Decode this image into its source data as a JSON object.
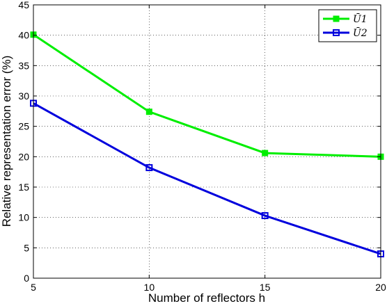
{
  "chart_data": {
    "type": "line",
    "title": "",
    "xlabel": "Number of reflectors h",
    "ylabel": "Relative representation error (%)",
    "xlim": [
      5,
      20
    ],
    "ylim": [
      0,
      45
    ],
    "xticks": [
      5,
      10,
      15,
      20
    ],
    "yticks": [
      0,
      5,
      10,
      15,
      20,
      25,
      30,
      35,
      40,
      45
    ],
    "grid": true,
    "legend_position": "top-right",
    "x": [
      5,
      10,
      15,
      20
    ],
    "series": [
      {
        "name": "Ū1",
        "color": "#00ee00",
        "marker": "filled-square",
        "values": [
          40.1,
          27.4,
          20.6,
          20.0
        ]
      },
      {
        "name": "Ū2",
        "color": "#0000dd",
        "marker": "open-square",
        "values": [
          28.8,
          18.2,
          10.3,
          4.0
        ]
      }
    ]
  }
}
